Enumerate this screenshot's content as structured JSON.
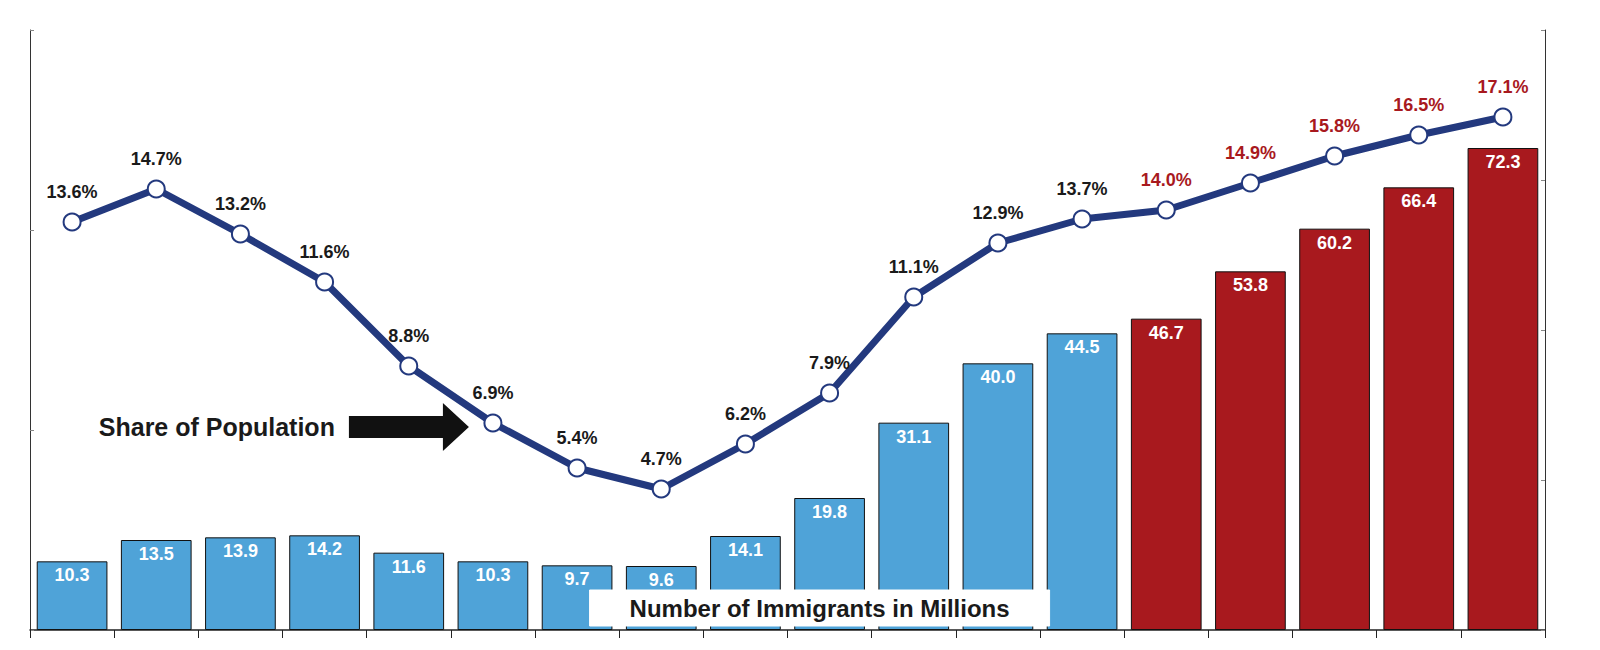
{
  "chart_data": {
    "type": "bar",
    "categories": [
      null,
      null,
      null,
      null,
      null,
      null,
      null,
      null,
      null,
      null,
      null,
      null,
      null,
      null,
      null,
      null,
      null,
      null
    ],
    "ylim": [
      0,
      90
    ],
    "yticks": [
      0,
      30,
      60,
      90
    ],
    "y2lim": [
      0,
      20
    ],
    "y2ticks": [
      0,
      5,
      10,
      15,
      20
    ],
    "tick_labels": false,
    "grid": false,
    "data_labels": true,
    "series": [
      {
        "name": "Number of Immigrants in Millions",
        "type": "bar",
        "values": [
          10.3,
          13.5,
          13.9,
          14.2,
          11.6,
          10.3,
          9.7,
          9.6,
          14.1,
          19.8,
          31.1,
          40.0,
          44.5,
          46.7,
          53.8,
          60.2,
          66.4,
          72.3
        ],
        "value_labels": [
          "10.3",
          "13.5",
          "13.9",
          "14.2",
          "11.6",
          "10.3",
          "9.7",
          "9.6",
          "14.1",
          "19.8",
          "31.1",
          "40.0",
          "44.5",
          "46.7",
          "53.8",
          "60.2",
          "66.4",
          "72.3"
        ],
        "colors": [
          "#4fa3d8",
          "#4fa3d8",
          "#4fa3d8",
          "#4fa3d8",
          "#4fa3d8",
          "#4fa3d8",
          "#4fa3d8",
          "#4fa3d8",
          "#4fa3d8",
          "#4fa3d8",
          "#4fa3d8",
          "#4fa3d8",
          "#4fa3d8",
          "#a8191e",
          "#a8191e",
          "#a8191e",
          "#a8191e",
          "#a8191e"
        ]
      },
      {
        "name": "Share of Population",
        "type": "line",
        "axis": "y2",
        "color": "#23397e",
        "marker": "circle",
        "values": [
          13.6,
          14.7,
          13.2,
          11.6,
          8.8,
          6.9,
          5.4,
          4.7,
          6.2,
          7.9,
          11.1,
          12.9,
          13.7,
          14.0,
          14.9,
          15.8,
          16.5,
          17.1
        ],
        "value_labels": [
          "13.6%",
          "14.7%",
          "13.2%",
          "11.6%",
          "8.8%",
          "6.9%",
          "5.4%",
          "4.7%",
          "6.2%",
          "7.9%",
          "11.1%",
          "12.9%",
          "13.7%",
          "14.0%",
          "14.9%",
          "15.8%",
          "16.5%",
          "17.1%"
        ],
        "colors": [
          "#1a1a1a",
          "#1a1a1a",
          "#1a1a1a",
          "#1a1a1a",
          "#1a1a1a",
          "#1a1a1a",
          "#1a1a1a",
          "#1a1a1a",
          "#1a1a1a",
          "#1a1a1a",
          "#1a1a1a",
          "#1a1a1a",
          "#1a1a1a",
          "#a8191e",
          "#a8191e",
          "#a8191e",
          "#a8191e",
          "#a8191e"
        ]
      }
    ]
  }
}
